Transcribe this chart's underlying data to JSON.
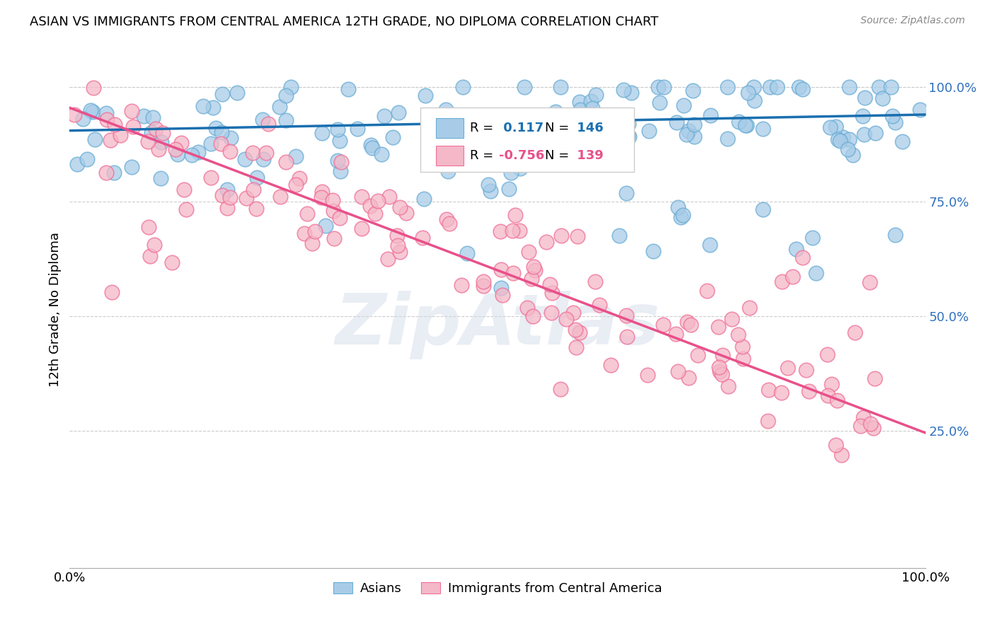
{
  "title": "ASIAN VS IMMIGRANTS FROM CENTRAL AMERICA 12TH GRADE, NO DIPLOMA CORRELATION CHART",
  "source": "Source: ZipAtlas.com",
  "ylabel": "12th Grade, No Diploma",
  "xlim": [
    0,
    1
  ],
  "ylim": [
    -0.05,
    1.08
  ],
  "xtick_labels": [
    "0.0%",
    "100.0%"
  ],
  "ytick_labels": [
    "100.0%",
    "75.0%",
    "50.0%",
    "25.0%"
  ],
  "ytick_positions": [
    1.0,
    0.75,
    0.5,
    0.25
  ],
  "blue_R": 0.117,
  "blue_N": 146,
  "pink_R": -0.756,
  "pink_N": 139,
  "blue_color": "#a8cce8",
  "pink_color": "#f4b8c8",
  "blue_edge_color": "#6aadd5",
  "pink_edge_color": "#f07098",
  "blue_line_color": "#1a6faf",
  "pink_line_color": "#e8508a",
  "blue_trend_y0": 0.905,
  "blue_trend_y1": 0.94,
  "pink_trend_y0": 0.955,
  "pink_trend_y1": 0.245,
  "legend_blue_label": "Asians",
  "legend_pink_label": "Immigrants from Central America",
  "watermark": "ZipAtlas",
  "background_color": "#ffffff",
  "grid_color": "#cccccc",
  "ytick_color": "#3070c0"
}
